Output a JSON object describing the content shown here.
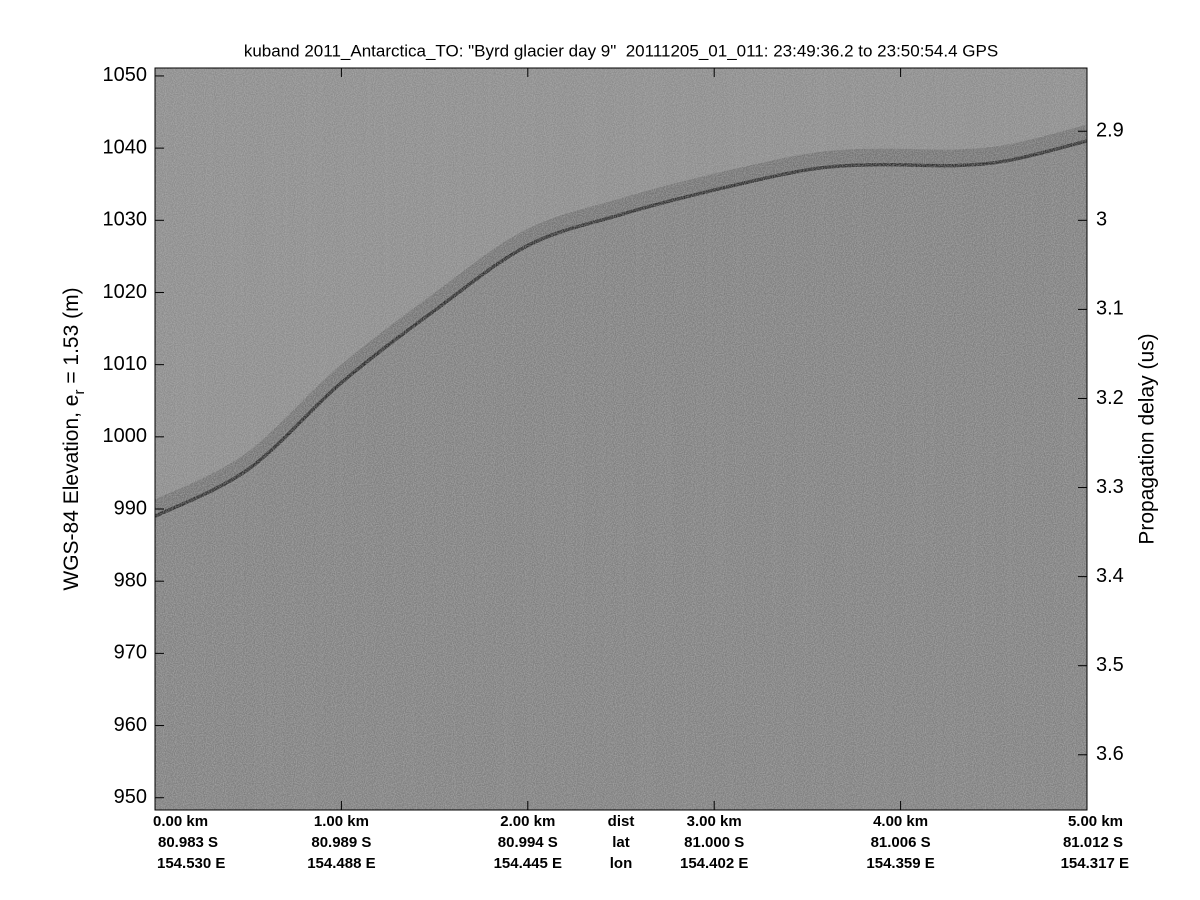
{
  "chart_data": {
    "type": "radargram",
    "title": "kuband 2011_Antarctica_TO: \"Byrd glacier day 9\"  20111205_01_011: 23:49:36.2 to 23:50:54.4 GPS",
    "ylabel": [
      "WGS-84 Elevation, e",
      "r",
      " = 1.53 (m)"
    ],
    "y2label": "Propagation delay (us)",
    "x": [
      0,
      0.5,
      1,
      1.5,
      2,
      2.5,
      3,
      3.5,
      3.85,
      4.3,
      4.6,
      5
    ],
    "values": [
      989.0,
      995.5,
      1007.5,
      1017.5,
      1026.5,
      1030.8,
      1034.2,
      1037.0,
      1037.7,
      1037.6,
      1038.4,
      1041.0
    ],
    "xlim": [
      0,
      5
    ],
    "xticks": [
      {
        "value": 0,
        "label": "0.00 km"
      },
      {
        "value": 1,
        "label": "1.00 km"
      },
      {
        "value": 2,
        "label": "2.00 km"
      },
      {
        "value": 3,
        "label": "3.00 km"
      },
      {
        "value": 4,
        "label": "4.00 km"
      },
      {
        "value": 5,
        "label": "5.00 km"
      }
    ],
    "lat_labels": [
      "80.983 S",
      "80.989 S",
      "80.994 S",
      "81.000 S",
      "81.006 S",
      "81.012 S"
    ],
    "lon_labels": [
      "154.530 E",
      "154.488 E",
      "154.445 E",
      "154.402 E",
      "154.359 E",
      "154.317 E"
    ],
    "row_labels": [
      "dist",
      "lat",
      "lon"
    ],
    "ylim": [
      948.3,
      1051.1
    ],
    "yticks": [
      950,
      960,
      970,
      980,
      990,
      1000,
      1010,
      1020,
      1030,
      1040,
      1050
    ],
    "y2lim": [
      3.662,
      2.829
    ],
    "y2ticks": [
      2.9,
      3,
      3.1,
      3.2,
      3.3,
      3.4,
      3.5,
      3.6
    ]
  }
}
